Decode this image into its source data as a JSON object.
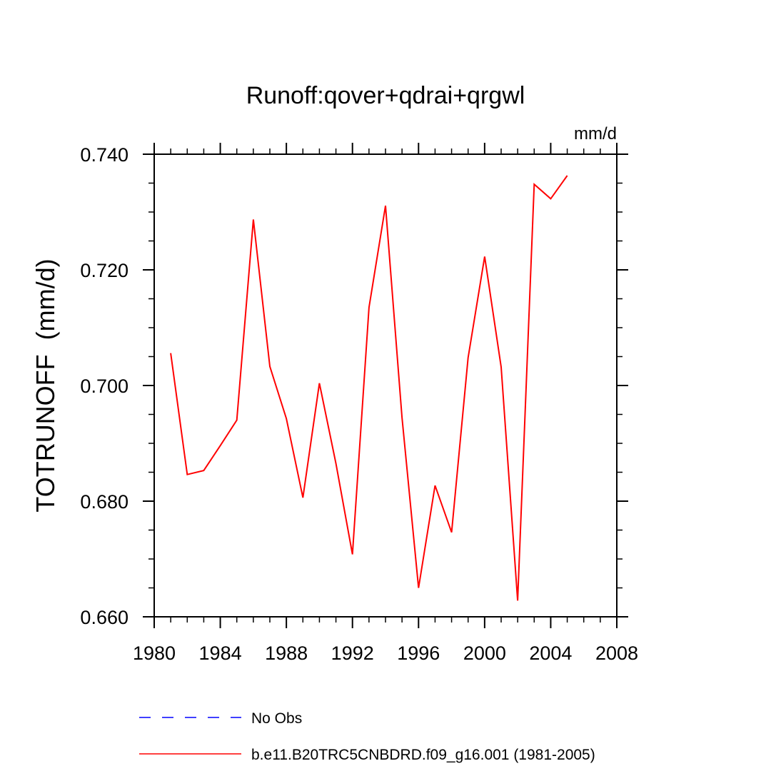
{
  "chart_data": {
    "type": "line",
    "title": "Runoff:qover+qdrai+qrgwl",
    "units_label": "mm/d",
    "ylabel": "TOTRUNOFF  (mm/d)",
    "xlabel": "",
    "xlim": [
      1980,
      2008
    ],
    "ylim": [
      0.66,
      0.74
    ],
    "x_ticks": [
      1980,
      1984,
      1988,
      1992,
      1996,
      2000,
      2004,
      2008
    ],
    "x_tick_labels": [
      "1980",
      "1984",
      "1988",
      "1992",
      "1996",
      "2000",
      "2004",
      "2008"
    ],
    "x_minor_step": 1,
    "y_ticks": [
      0.66,
      0.68,
      0.7,
      0.72,
      0.74
    ],
    "y_tick_labels": [
      "0.660",
      "0.680",
      "0.700",
      "0.720",
      "0.740"
    ],
    "y_minor_step": 0.005,
    "grid": false,
    "legend_position": "bottom",
    "series": [
      {
        "name": "b.e11.B20TRC5CNBDRD.f09_g16.001 (1981-2005)",
        "color": "#ff0000",
        "style": "solid",
        "x": [
          1981,
          1982,
          1983,
          1984,
          1985,
          1986,
          1987,
          1988,
          1989,
          1990,
          1991,
          1992,
          1993,
          1994,
          1995,
          1996,
          1997,
          1998,
          1999,
          2000,
          2001,
          2002,
          2003,
          2004,
          2005
        ],
        "values": [
          0.7056,
          0.6846,
          0.6853,
          0.6896,
          0.694,
          0.7287,
          0.7033,
          0.6943,
          0.6806,
          0.7004,
          0.6865,
          0.6708,
          0.7135,
          0.7311,
          0.6945,
          0.665,
          0.6827,
          0.6746,
          0.7048,
          0.7223,
          0.7032,
          0.6628,
          0.7348,
          0.7323,
          0.7363
        ]
      }
    ],
    "legend": [
      {
        "label": "No Obs",
        "color": "#0000ff",
        "style": "dashed"
      },
      {
        "label": "b.e11.B20TRC5CNBDRD.f09_g16.001 (1981-2005)",
        "color": "#ff0000",
        "style": "solid"
      }
    ]
  }
}
